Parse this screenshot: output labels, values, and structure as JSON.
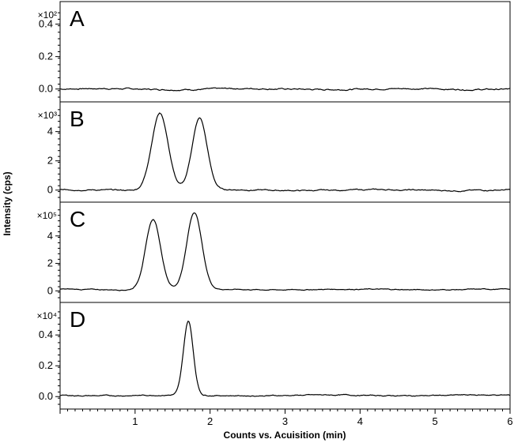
{
  "chart_data": {
    "type": "line",
    "xlabel": "Counts vs. Acuisition (min)",
    "ylabel": "Intensity (cps)",
    "xlim": [
      0,
      6
    ],
    "x_ticks": [
      "1",
      "2",
      "3",
      "4",
      "5",
      "6"
    ],
    "grid": false,
    "colors": {
      "line": "#000000",
      "background": "#ffffff"
    },
    "panels": [
      {
        "label": "A",
        "multiplier": "×10²",
        "ylim": [
          -0.05,
          0.5
        ],
        "y_ticks": [
          "0.0",
          "0.2",
          "0.4"
        ],
        "y_tick_values": [
          0.0,
          0.2,
          0.4
        ],
        "baseline": 0.0,
        "noise": 0.005,
        "peaks": []
      },
      {
        "label": "B",
        "multiplier": "×10³",
        "ylim": [
          -0.5,
          5.6
        ],
        "y_ticks": [
          "0",
          "2",
          "4"
        ],
        "y_tick_values": [
          0,
          2,
          4
        ],
        "baseline": 0.0,
        "noise": 0.05,
        "peaks": [
          {
            "rt": 1.33,
            "height": 5.3,
            "width": 0.11
          },
          {
            "rt": 1.86,
            "height": 4.9,
            "width": 0.1
          }
        ]
      },
      {
        "label": "C",
        "multiplier": "×10⁵",
        "ylim": [
          -0.5,
          6.0
        ],
        "y_ticks": [
          "0",
          "2",
          "4"
        ],
        "y_tick_values": [
          0,
          2,
          4
        ],
        "baseline": 0.1,
        "noise": 0.04,
        "peaks": [
          {
            "rt": 1.24,
            "height": 5.1,
            "width": 0.1
          },
          {
            "rt": 1.79,
            "height": 5.6,
            "width": 0.1
          }
        ]
      },
      {
        "label": "D",
        "multiplier": "×10⁴",
        "ylim": [
          -0.05,
          0.57
        ],
        "y_ticks": [
          "0.0",
          "0.2",
          "0.4"
        ],
        "y_tick_values": [
          0.0,
          0.2,
          0.4
        ],
        "baseline": 0.008,
        "noise": 0.004,
        "peaks": [
          {
            "rt": 1.71,
            "height": 0.48,
            "width": 0.065
          }
        ]
      }
    ]
  }
}
